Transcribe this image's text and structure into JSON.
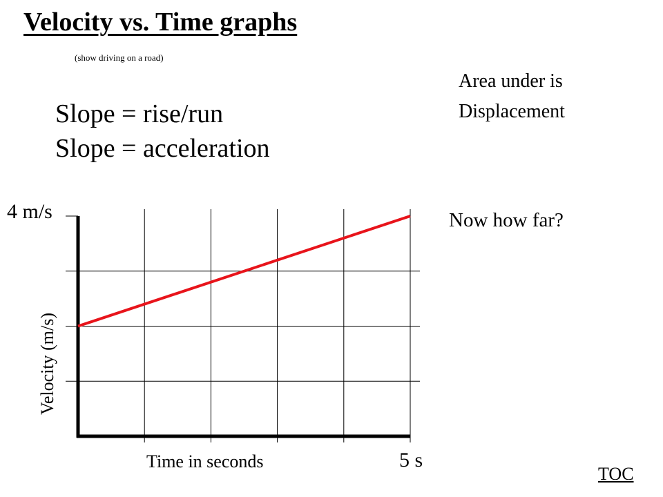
{
  "slide": {
    "title": "Velocity vs. Time graphs",
    "subtitle": "(show driving on a road)",
    "slope_line_1": "Slope = rise/run",
    "slope_line_2": "Slope = acceleration",
    "area_line_1": "Area under is",
    "area_line_2": "Displacement",
    "question": "Now how far?",
    "toc_link": "TOC"
  },
  "chart_data": {
    "type": "line",
    "title": "",
    "xlabel": "Time in seconds",
    "ylabel": "Velocity (m/s)",
    "x_end_label": "5 s",
    "y_top_label": "4 m/s",
    "xlim": [
      0,
      5
    ],
    "ylim": [
      0,
      4
    ],
    "grid": true,
    "series": [
      {
        "color": "#e8141b",
        "x": [
          0,
          5
        ],
        "y": [
          2,
          4
        ]
      }
    ]
  }
}
